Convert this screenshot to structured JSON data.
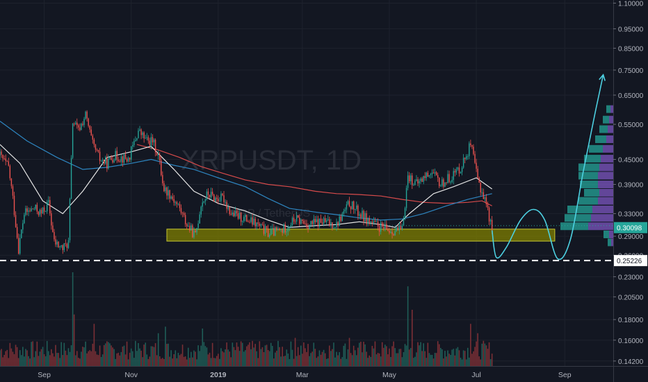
{
  "chart_data": {
    "type": "candlestick",
    "watermark": "XRPUSDT, 1D",
    "watermark_sub": "XRP / TetherUS",
    "price_axis": {
      "scale": "log",
      "labels": [
        "1.10000",
        "0.95000",
        "0.85000",
        "0.75000",
        "0.65000",
        "0.55000",
        "0.45000",
        "0.39000",
        "0.33000",
        "0.29000",
        "0.26000",
        "0.23000",
        "0.20500",
        "0.18000",
        "0.16000",
        "0.14200"
      ],
      "range": [
        0.138,
        1.12
      ]
    },
    "time_axis": {
      "labels": [
        "Sep",
        "Nov",
        "2019",
        "Mar",
        "May",
        "Jul",
        "Sep"
      ],
      "range": [
        "2018-08-01",
        "2019-10-05"
      ]
    },
    "current_price": "0.30098",
    "current_price_color": "#26a69a",
    "support_label": "0.25226",
    "support_level": 0.25226,
    "dotted_level": 0.308,
    "support_zone": {
      "from": "2018-11-26",
      "to": "2019-08-25",
      "low": 0.282,
      "high": 0.302
    },
    "projection_path": {
      "color": "#4dd0e1",
      "points": [
        [
          "2019-07-12",
          0.3
        ],
        [
          "2019-07-15",
          0.257
        ],
        [
          "2019-07-22",
          0.272
        ],
        [
          "2019-08-01",
          0.318
        ],
        [
          "2019-08-10",
          0.338
        ],
        [
          "2019-08-18",
          0.318
        ],
        [
          "2019-08-27",
          0.255
        ],
        [
          "2019-09-05",
          0.285
        ],
        [
          "2019-09-14",
          0.42
        ],
        [
          "2019-09-22",
          0.58
        ],
        [
          "2019-09-28",
          0.73
        ]
      ]
    },
    "ema_fast": {
      "color": "#e6e6e6",
      "points": [
        [
          "2018-08-01",
          0.49
        ],
        [
          "2018-08-15",
          0.44
        ],
        [
          "2018-08-31",
          0.355
        ],
        [
          "2018-09-14",
          0.33
        ],
        [
          "2018-09-28",
          0.375
        ],
        [
          "2018-10-15",
          0.455
        ],
        [
          "2018-11-01",
          0.47
        ],
        [
          "2018-11-15",
          0.485
        ],
        [
          "2018-12-01",
          0.425
        ],
        [
          "2018-12-15",
          0.375
        ],
        [
          "2019-01-01",
          0.35
        ],
        [
          "2019-01-20",
          0.335
        ],
        [
          "2019-02-05",
          0.318
        ],
        [
          "2019-02-20",
          0.305
        ],
        [
          "2019-03-10",
          0.308
        ],
        [
          "2019-03-25",
          0.31
        ],
        [
          "2019-04-10",
          0.315
        ],
        [
          "2019-04-25",
          0.31
        ],
        [
          "2019-05-05",
          0.305
        ],
        [
          "2019-05-15",
          0.33
        ],
        [
          "2019-06-01",
          0.37
        ],
        [
          "2019-06-15",
          0.385
        ],
        [
          "2019-07-01",
          0.405
        ],
        [
          "2019-07-12",
          0.38
        ]
      ]
    },
    "ema_mid": {
      "color": "#2e86c1",
      "points": [
        [
          "2018-08-01",
          0.56
        ],
        [
          "2018-08-20",
          0.5
        ],
        [
          "2018-09-10",
          0.455
        ],
        [
          "2018-09-28",
          0.425
        ],
        [
          "2018-10-15",
          0.43
        ],
        [
          "2018-11-01",
          0.44
        ],
        [
          "2018-11-15",
          0.45
        ],
        [
          "2018-12-01",
          0.435
        ],
        [
          "2018-12-15",
          0.425
        ],
        [
          "2019-01-01",
          0.405
        ],
        [
          "2019-01-20",
          0.385
        ],
        [
          "2019-02-05",
          0.36
        ],
        [
          "2019-02-20",
          0.34
        ],
        [
          "2019-03-10",
          0.333
        ],
        [
          "2019-03-25",
          0.328
        ],
        [
          "2019-04-10",
          0.322
        ],
        [
          "2019-04-25",
          0.318
        ],
        [
          "2019-05-10",
          0.32
        ],
        [
          "2019-05-25",
          0.33
        ],
        [
          "2019-06-10",
          0.345
        ],
        [
          "2019-06-25",
          0.358
        ],
        [
          "2019-07-12",
          0.37
        ]
      ]
    },
    "ema_slow": {
      "color": "#d84b4b",
      "points": [
        [
          "2018-11-05",
          0.49
        ],
        [
          "2018-11-20",
          0.475
        ],
        [
          "2018-12-05",
          0.455
        ],
        [
          "2018-12-20",
          0.432
        ],
        [
          "2019-01-05",
          0.415
        ],
        [
          "2019-01-20",
          0.4
        ],
        [
          "2019-02-05",
          0.39
        ],
        [
          "2019-02-20",
          0.385
        ],
        [
          "2019-03-10",
          0.375
        ],
        [
          "2019-03-25",
          0.37
        ],
        [
          "2019-04-10",
          0.368
        ],
        [
          "2019-04-25",
          0.365
        ],
        [
          "2019-05-10",
          0.358
        ],
        [
          "2019-05-25",
          0.352
        ],
        [
          "2019-06-10",
          0.35
        ],
        [
          "2019-06-25",
          0.352
        ],
        [
          "2019-07-05",
          0.355
        ],
        [
          "2019-07-12",
          0.345
        ]
      ]
    },
    "price_path": [
      [
        "2018-08-01",
        0.46
      ],
      [
        "2018-08-07",
        0.43
      ],
      [
        "2018-08-10",
        0.36
      ],
      [
        "2018-08-14",
        0.27
      ],
      [
        "2018-08-18",
        0.33
      ],
      [
        "2018-08-25",
        0.34
      ],
      [
        "2018-08-30",
        0.33
      ],
      [
        "2018-09-04",
        0.35
      ],
      [
        "2018-09-08",
        0.28
      ],
      [
        "2018-09-14",
        0.27
      ],
      [
        "2018-09-18",
        0.28
      ],
      [
        "2018-09-21",
        0.56
      ],
      [
        "2018-09-25",
        0.53
      ],
      [
        "2018-09-30",
        0.58
      ],
      [
        "2018-10-05",
        0.49
      ],
      [
        "2018-10-10",
        0.45
      ],
      [
        "2018-10-15",
        0.44
      ],
      [
        "2018-10-20",
        0.46
      ],
      [
        "2018-10-30",
        0.45
      ],
      [
        "2018-11-06",
        0.53
      ],
      [
        "2018-11-12",
        0.5
      ],
      [
        "2018-11-16",
        0.5
      ],
      [
        "2018-11-20",
        0.46
      ],
      [
        "2018-11-24",
        0.38
      ],
      [
        "2018-11-28",
        0.37
      ],
      [
        "2018-12-05",
        0.34
      ],
      [
        "2018-12-10",
        0.31
      ],
      [
        "2018-12-16",
        0.29
      ],
      [
        "2018-12-20",
        0.35
      ],
      [
        "2018-12-25",
        0.37
      ],
      [
        "2018-12-30",
        0.36
      ],
      [
        "2019-01-05",
        0.36
      ],
      [
        "2019-01-10",
        0.33
      ],
      [
        "2019-01-20",
        0.32
      ],
      [
        "2019-01-28",
        0.31
      ],
      [
        "2019-02-05",
        0.295
      ],
      [
        "2019-02-15",
        0.3
      ],
      [
        "2019-02-24",
        0.32
      ],
      [
        "2019-03-05",
        0.31
      ],
      [
        "2019-03-15",
        0.315
      ],
      [
        "2019-03-25",
        0.31
      ],
      [
        "2019-04-03",
        0.35
      ],
      [
        "2019-04-10",
        0.33
      ],
      [
        "2019-04-20",
        0.31
      ],
      [
        "2019-04-30",
        0.3
      ],
      [
        "2019-05-10",
        0.3
      ],
      [
        "2019-05-14",
        0.41
      ],
      [
        "2019-05-20",
        0.39
      ],
      [
        "2019-05-30",
        0.42
      ],
      [
        "2019-06-06",
        0.39
      ],
      [
        "2019-06-14",
        0.41
      ],
      [
        "2019-06-20",
        0.43
      ],
      [
        "2019-06-27",
        0.49
      ],
      [
        "2019-07-02",
        0.4
      ],
      [
        "2019-07-08",
        0.35
      ],
      [
        "2019-07-12",
        0.3
      ]
    ],
    "volume_profile_colors": [
      "#26a69a",
      "#7e57c2"
    ],
    "volume_profile": [
      {
        "price": 0.6,
        "up": 6,
        "down": 4
      },
      {
        "price": 0.565,
        "up": 9,
        "down": 6
      },
      {
        "price": 0.535,
        "up": 12,
        "down": 8
      },
      {
        "price": 0.505,
        "up": 16,
        "down": 10
      },
      {
        "price": 0.478,
        "up": 20,
        "down": 15
      },
      {
        "price": 0.452,
        "up": 24,
        "down": 18
      },
      {
        "price": 0.43,
        "up": 30,
        "down": 20
      },
      {
        "price": 0.41,
        "up": 28,
        "down": 22
      },
      {
        "price": 0.39,
        "up": 26,
        "down": 22
      },
      {
        "price": 0.372,
        "up": 22,
        "down": 20
      },
      {
        "price": 0.355,
        "up": 28,
        "down": 22
      },
      {
        "price": 0.338,
        "up": 36,
        "down": 30
      },
      {
        "price": 0.322,
        "up": 38,
        "down": 32
      },
      {
        "price": 0.307,
        "up": 40,
        "down": 36
      },
      {
        "price": 0.293,
        "up": 8,
        "down": 6
      },
      {
        "price": 0.28,
        "up": 5,
        "down": 3
      }
    ],
    "volume_spikes": [
      [
        "2018-09-21",
        1.0
      ],
      [
        "2018-09-22",
        0.55
      ],
      [
        "2018-10-06",
        0.45
      ],
      [
        "2018-11-20",
        0.35
      ],
      [
        "2018-11-25",
        0.42
      ],
      [
        "2018-12-21",
        0.4
      ],
      [
        "2019-02-24",
        0.3
      ],
      [
        "2019-04-03",
        0.3
      ],
      [
        "2019-05-14",
        0.85
      ],
      [
        "2019-05-17",
        0.6
      ],
      [
        "2019-06-27",
        0.45
      ],
      [
        "2019-07-02",
        0.35
      ]
    ],
    "colors": {
      "up": "#26a69a",
      "down": "#ef5350",
      "zone_fill": "#7f7f00",
      "zone_border": "#c8c832"
    }
  }
}
